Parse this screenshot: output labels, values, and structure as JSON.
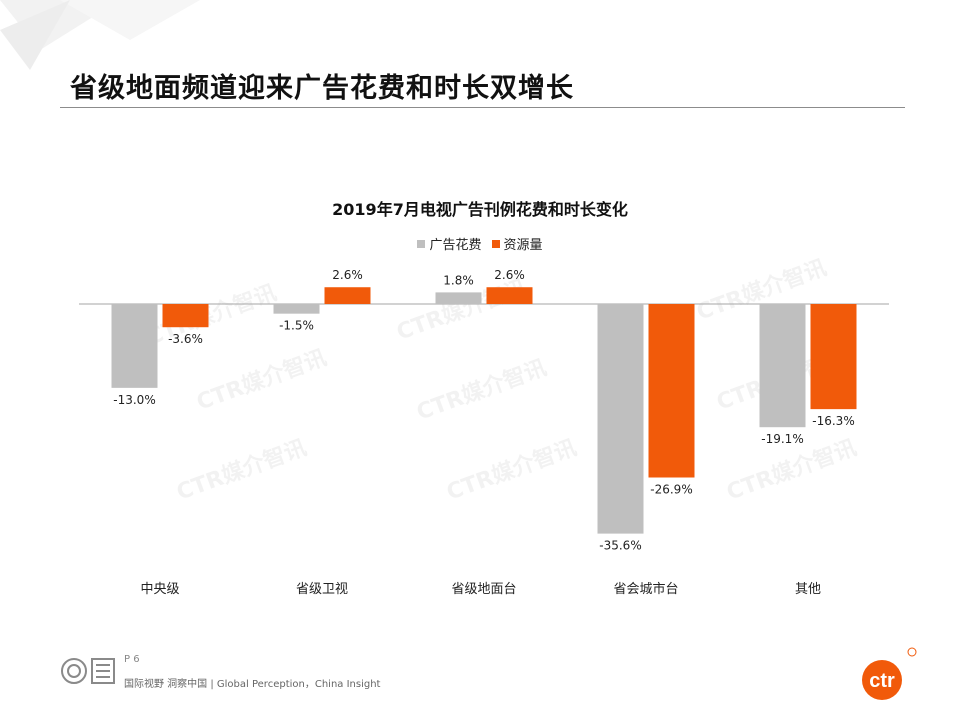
{
  "header": {
    "title": "省级地面频道迎来广告花费和时长双增长"
  },
  "footer": {
    "page": "P 6",
    "tagline": "国际视野  洞察中国 |  Global Perception，China Insight",
    "brand": "ctr"
  },
  "watermark": "CTR媒介智讯",
  "chart_data": {
    "type": "bar",
    "title": "2019年7月电视广告刊例花费和时长变化",
    "categories": [
      "中央级",
      "省级卫视",
      "省级地面台",
      "省会城市台",
      "其他"
    ],
    "series": [
      {
        "name": "广告花费",
        "values": [
          -13.0,
          -1.5,
          1.8,
          -35.6,
          -19.1
        ],
        "labels": [
          "-13.0%",
          "-1.5%",
          "1.8%",
          "-35.6%",
          "-19.1%"
        ],
        "color": "#bfbfbf"
      },
      {
        "name": "资源量",
        "values": [
          -3.6,
          2.6,
          2.6,
          -26.9,
          -16.3
        ],
        "labels": [
          "-3.6%",
          "2.6%",
          "2.6%",
          "-26.9%",
          "-16.3%"
        ],
        "color": "#f15a0a"
      }
    ],
    "unit": "%",
    "ylim": [
      -36,
      3
    ],
    "legend": "top",
    "grid": false
  }
}
